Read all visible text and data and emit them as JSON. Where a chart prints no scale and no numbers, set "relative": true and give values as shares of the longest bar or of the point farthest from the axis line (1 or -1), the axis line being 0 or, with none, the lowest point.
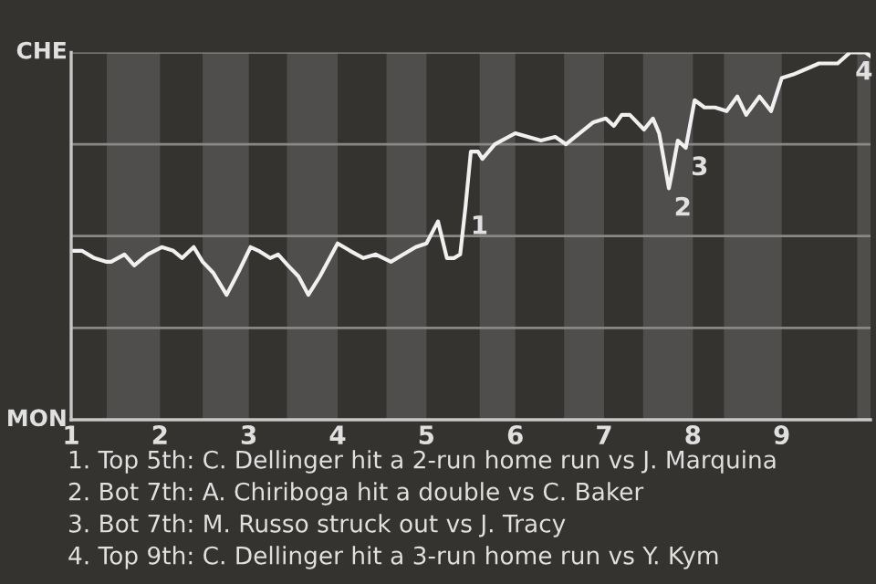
{
  "chart_data": {
    "type": "line",
    "relative": true,
    "x": [
      1,
      1.12,
      1.26,
      1.4,
      1.45,
      1.6,
      1.71,
      1.86,
      2.02,
      2.15,
      2.25,
      2.38,
      2.48,
      2.6,
      2.75,
      2.9,
      3.02,
      3.11,
      3.24,
      3.33,
      3.44,
      3.56,
      3.67,
      3.8,
      4,
      4.14,
      4.29,
      4.43,
      4.6,
      4.74,
      4.88,
      5,
      5.13,
      5.23,
      5.31,
      5.38,
      5.44,
      5.5,
      5.58,
      5.63,
      5.77,
      6,
      6.29,
      6.45,
      6.57,
      6.88,
      7.02,
      7.11,
      7.2,
      7.29,
      7.45,
      7.55,
      7.62,
      7.73,
      7.77,
      7.83,
      7.92,
      8.02,
      8.13,
      8.25,
      8.38,
      8.5,
      8.6,
      8.75,
      8.88,
      9,
      9.13,
      9.23,
      9.42,
      9.63,
      9.77,
      9.94,
      10
    ],
    "series": [
      {
        "color": "#f0f0f0",
        "values": [
          0.46,
          0.46,
          0.44,
          0.43,
          0.43,
          0.45,
          0.42,
          0.45,
          0.47,
          0.46,
          0.44,
          0.47,
          0.43,
          0.4,
          0.34,
          0.41,
          0.47,
          0.46,
          0.44,
          0.45,
          0.42,
          0.39,
          0.34,
          0.39,
          0.48,
          0.46,
          0.44,
          0.45,
          0.43,
          0.45,
          0.47,
          0.48,
          0.54,
          0.44,
          0.44,
          0.45,
          0.58,
          0.73,
          0.73,
          0.71,
          0.75,
          0.78,
          0.76,
          0.77,
          0.75,
          0.81,
          0.82,
          0.8,
          0.83,
          0.83,
          0.79,
          0.82,
          0.78,
          0.63,
          0.68,
          0.76,
          0.74,
          0.87,
          0.85,
          0.85,
          0.84,
          0.88,
          0.83,
          0.88,
          0.84,
          0.93,
          0.94,
          0.95,
          0.97,
          0.97,
          1.0,
          1.0,
          0.99
        ]
      }
    ],
    "xlim": [
      1,
      10
    ],
    "xticks": [
      1,
      2,
      3,
      4,
      5,
      6,
      7,
      8,
      9
    ],
    "ref_lines": [
      {
        "axis": "y",
        "value": 0.25,
        "color": "#8a8886"
      },
      {
        "axis": "y",
        "value": 0.5,
        "color": "#8a8886"
      },
      {
        "axis": "y",
        "value": 0.75,
        "color": "#8a8886"
      },
      {
        "axis": "y",
        "value": 1,
        "color": "#8a8886"
      }
    ],
    "bands": [
      {
        "axis": "x",
        "from": 1.4,
        "to": 2,
        "color": "#4f4e4c"
      },
      {
        "axis": "x",
        "from": 2.48,
        "to": 3,
        "color": "#4f4e4c"
      },
      {
        "axis": "x",
        "from": 3.43,
        "to": 4,
        "color": "#4f4e4c"
      },
      {
        "axis": "x",
        "from": 4.55,
        "to": 5,
        "color": "#4f4e4c"
      },
      {
        "axis": "x",
        "from": 5.6,
        "to": 6,
        "color": "#4f4e4c"
      },
      {
        "axis": "x",
        "from": 6.55,
        "to": 7,
        "color": "#4f4e4c"
      },
      {
        "axis": "x",
        "from": 7.44,
        "to": 8,
        "color": "#4f4e4c"
      },
      {
        "axis": "x",
        "from": 8.35,
        "to": 9,
        "color": "#4f4e4c"
      },
      {
        "axis": "x",
        "from": 9.85,
        "to": 10,
        "color": "#4f4e4c"
      }
    ],
    "annotations": [
      "CHE",
      "MON",
      {
        "text": "1",
        "x": 5.44,
        "y": 0.58
      },
      {
        "text": "2",
        "x": 7.73,
        "y": 0.63
      },
      {
        "text": "3",
        "x": 7.92,
        "y": 0.74
      },
      {
        "text": "4",
        "x": 9.77,
        "y": 1.0
      },
      "1. Top 5th: C. Dellinger hit a 2-run home run vs J. Marquina",
      "2. Bot 7th: A. Chiriboga hit a double vs C. Baker",
      "3. Bot 7th: M. Russo struck out vs J. Tracy",
      "4. Top 9th: C. Dellinger hit a 3-run home run vs Y. Kym"
    ]
  }
}
